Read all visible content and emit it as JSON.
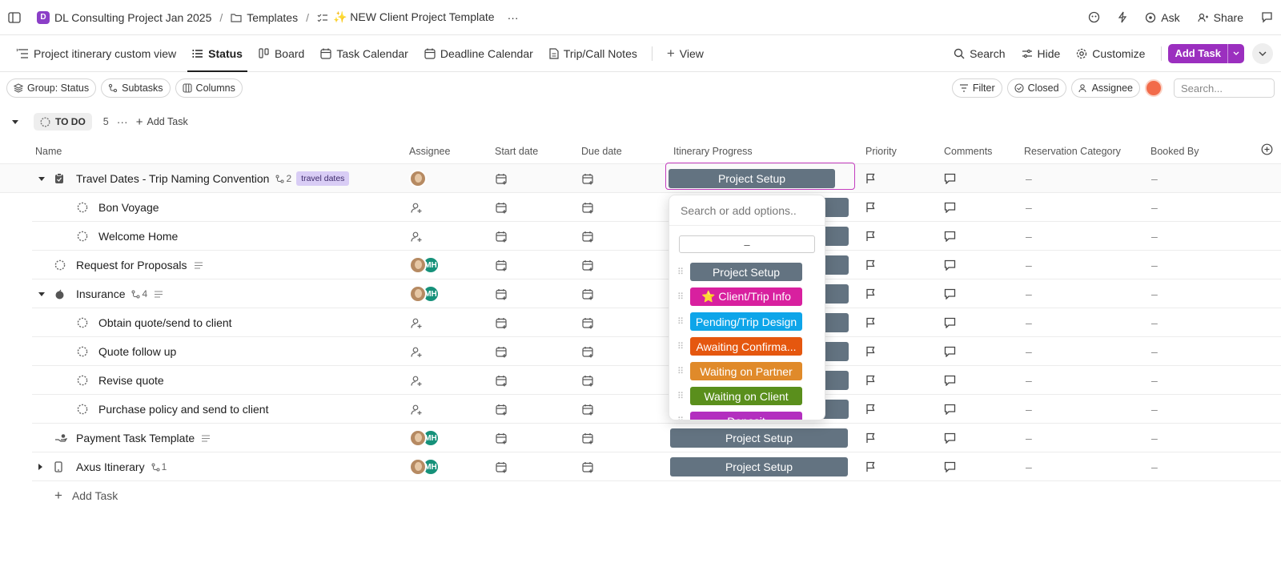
{
  "topbar": {
    "space": "DL Consulting Project Jan 2025",
    "space_letter": "D",
    "folder": "Templates",
    "list": "✨ NEW Client Project Template",
    "more": "···",
    "ask": "Ask",
    "share": "Share"
  },
  "views": {
    "tabs": [
      {
        "label": "Project itinerary custom view"
      },
      {
        "label": "Status"
      },
      {
        "label": "Board"
      },
      {
        "label": "Task Calendar"
      },
      {
        "label": "Deadline Calendar"
      },
      {
        "label": "Trip/Call Notes"
      }
    ],
    "add_view": "View",
    "search": "Search",
    "hide": "Hide",
    "customize": "Customize",
    "add_task": "Add Task"
  },
  "filters": {
    "group": "Group: Status",
    "subtasks": "Subtasks",
    "columns": "Columns",
    "filter": "Filter",
    "closed": "Closed",
    "assignee": "Assignee",
    "search_placeholder": "Search..."
  },
  "group": {
    "status": "TO DO",
    "count": "5",
    "add": "Add Task"
  },
  "columns": {
    "name": "Name",
    "assignee": "Assignee",
    "start": "Start date",
    "due": "Due date",
    "progress": "Itinerary Progress",
    "priority": "Priority",
    "comments": "Comments",
    "reservation": "Reservation Category",
    "booked": "Booked By"
  },
  "rows": [
    {
      "name": "Travel Dates - Trip Naming Convention",
      "subcount": "2",
      "tag": "travel dates",
      "progress": "Project Setup",
      "dash1": "–",
      "dash2": "–"
    },
    {
      "name": "Bon Voyage",
      "dash1": "–",
      "dash2": "–"
    },
    {
      "name": "Welcome Home",
      "dash1": "–",
      "dash2": "–"
    },
    {
      "name": "Request for Proposals",
      "mh": "MH",
      "dash1": "–",
      "dash2": "–"
    },
    {
      "name": "Insurance",
      "subcount": "4",
      "mh": "MH",
      "dash1": "–",
      "dash2": "–"
    },
    {
      "name": "Obtain quote/send to client",
      "dash1": "–",
      "dash2": "–"
    },
    {
      "name": "Quote follow up",
      "dash1": "–",
      "dash2": "–"
    },
    {
      "name": "Revise quote",
      "dash1": "–",
      "dash2": "–"
    },
    {
      "name": "Purchase policy and send to client",
      "dash1": "–",
      "dash2": "–"
    },
    {
      "name": "Payment Task Template",
      "mh": "MH",
      "progress": "Project Setup",
      "dash1": "–",
      "dash2": "–"
    },
    {
      "name": "Axus Itinerary",
      "subcount": "1",
      "mh": "MH",
      "progress": "Project Setup",
      "dash1": "–",
      "dash2": "–"
    }
  ],
  "add_task_row": "Add Task",
  "dropdown": {
    "search_placeholder": "Search or add options..",
    "none": "–",
    "options": [
      {
        "label": "Project Setup",
        "color": "#637381"
      },
      {
        "label": "⭐ Client/Trip Info",
        "color": "#d8209f"
      },
      {
        "label": "Pending/Trip Design",
        "color": "#0ea5e9"
      },
      {
        "label": "Awaiting Confirma...",
        "color": "#e5570f"
      },
      {
        "label": "Waiting on Partner",
        "color": "#e08a2a"
      },
      {
        "label": "Waiting on Client",
        "color": "#5a8f1c"
      },
      {
        "label": "Deposit",
        "color": "#b32fbf"
      }
    ]
  }
}
